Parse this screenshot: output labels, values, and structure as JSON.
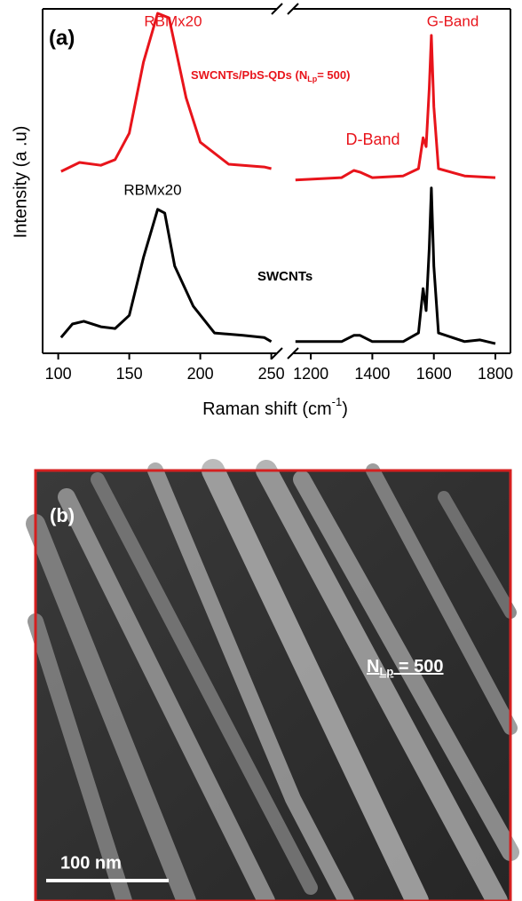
{
  "chart_data": {
    "type": "line",
    "title": "(a)",
    "ylabel": "Intensity (a .u)",
    "xlabel": {
      "text": "Raman shift (cm",
      "sup": "-1",
      "tail": ")"
    },
    "x_segments": [
      {
        "xlim": [
          89,
          254
        ],
        "xticks": [
          100,
          150,
          200,
          250
        ]
      },
      {
        "xlim": [
          1142,
          1849
        ],
        "xticks": [
          1200,
          1400,
          1600,
          1800
        ]
      }
    ],
    "ylim": [
      0,
      100
    ],
    "series": [
      {
        "name": {
          "text": "SWCNTs/PbS-QDs (N",
          "sub": "Lp",
          "tail": "= 500)"
        },
        "color": "#e8141b",
        "x": [
          102,
          115,
          130,
          140,
          150,
          160,
          170,
          178,
          190,
          200,
          220,
          245,
          250,
          700,
          1150,
          1300,
          1340,
          1360,
          1400,
          1500,
          1550,
          1565,
          1575,
          1585,
          1592,
          1600,
          1615,
          1700,
          1800
        ],
        "values": [
          52.8,
          55.4,
          54.6,
          56.2,
          63.9,
          84.5,
          98.7,
          97.4,
          74.2,
          61.3,
          54.9,
          54.1,
          53.6,
          null,
          50.3,
          51,
          53.1,
          52.6,
          51,
          51.5,
          53.6,
          62.6,
          60,
          76.8,
          92.3,
          71.6,
          53.6,
          51.5,
          51
        ]
      },
      {
        "name": "SWCNTs",
        "color": "#000000",
        "x": [
          102,
          110,
          118,
          130,
          140,
          150,
          160,
          170,
          175,
          182,
          195,
          210,
          230,
          245,
          250,
          700,
          1150,
          1300,
          1340,
          1360,
          1400,
          1500,
          1550,
          1565,
          1575,
          1585,
          1592,
          1600,
          1615,
          1700,
          1750,
          1800
        ],
        "values": [
          4.6,
          8.5,
          9.3,
          7.7,
          7.2,
          11,
          27.8,
          41.8,
          40.7,
          25.3,
          13.7,
          5.9,
          5.2,
          4.6,
          3.4,
          null,
          3.4,
          3.4,
          5.2,
          5.2,
          3.4,
          3.4,
          5.9,
          18.8,
          12.4,
          30.4,
          48,
          25.3,
          5.9,
          3.4,
          3.9,
          2.8
        ]
      }
    ],
    "annotations": [
      "RBMx20",
      "G-Band",
      "D-Band",
      "RBMx20"
    ]
  },
  "image_panel": {
    "label": "(b)",
    "annotation": {
      "text": "N",
      "sub": "Lp",
      "tail": " = 500"
    },
    "scale_bar": "100 nm"
  }
}
